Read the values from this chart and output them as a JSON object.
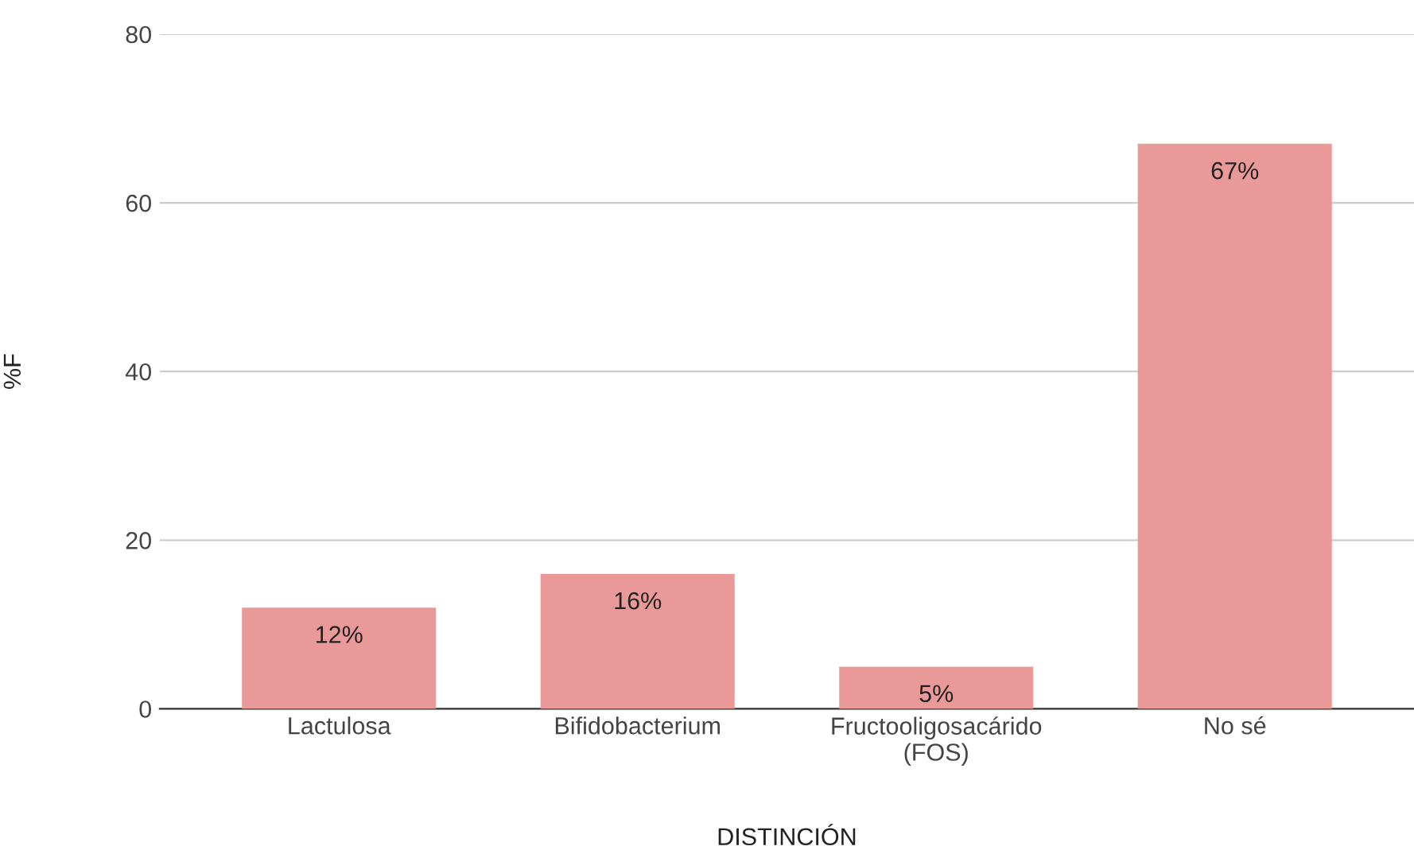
{
  "chart_data": {
    "type": "bar",
    "xlabel": "DISTINCIÓN",
    "ylabel": "%F",
    "categories": [
      "Lactulosa",
      "Bifidobacterium",
      "Fructooligosacárido\n(FOS)",
      "No sé"
    ],
    "values": [
      12,
      16,
      5,
      67
    ],
    "value_labels": [
      "12%",
      "16%",
      "5%",
      "67%"
    ],
    "color": "#ea9999",
    "ylim": [
      0,
      80
    ],
    "yticks": [
      0,
      20,
      40,
      60,
      80
    ],
    "grid": "y",
    "legend": false
  }
}
